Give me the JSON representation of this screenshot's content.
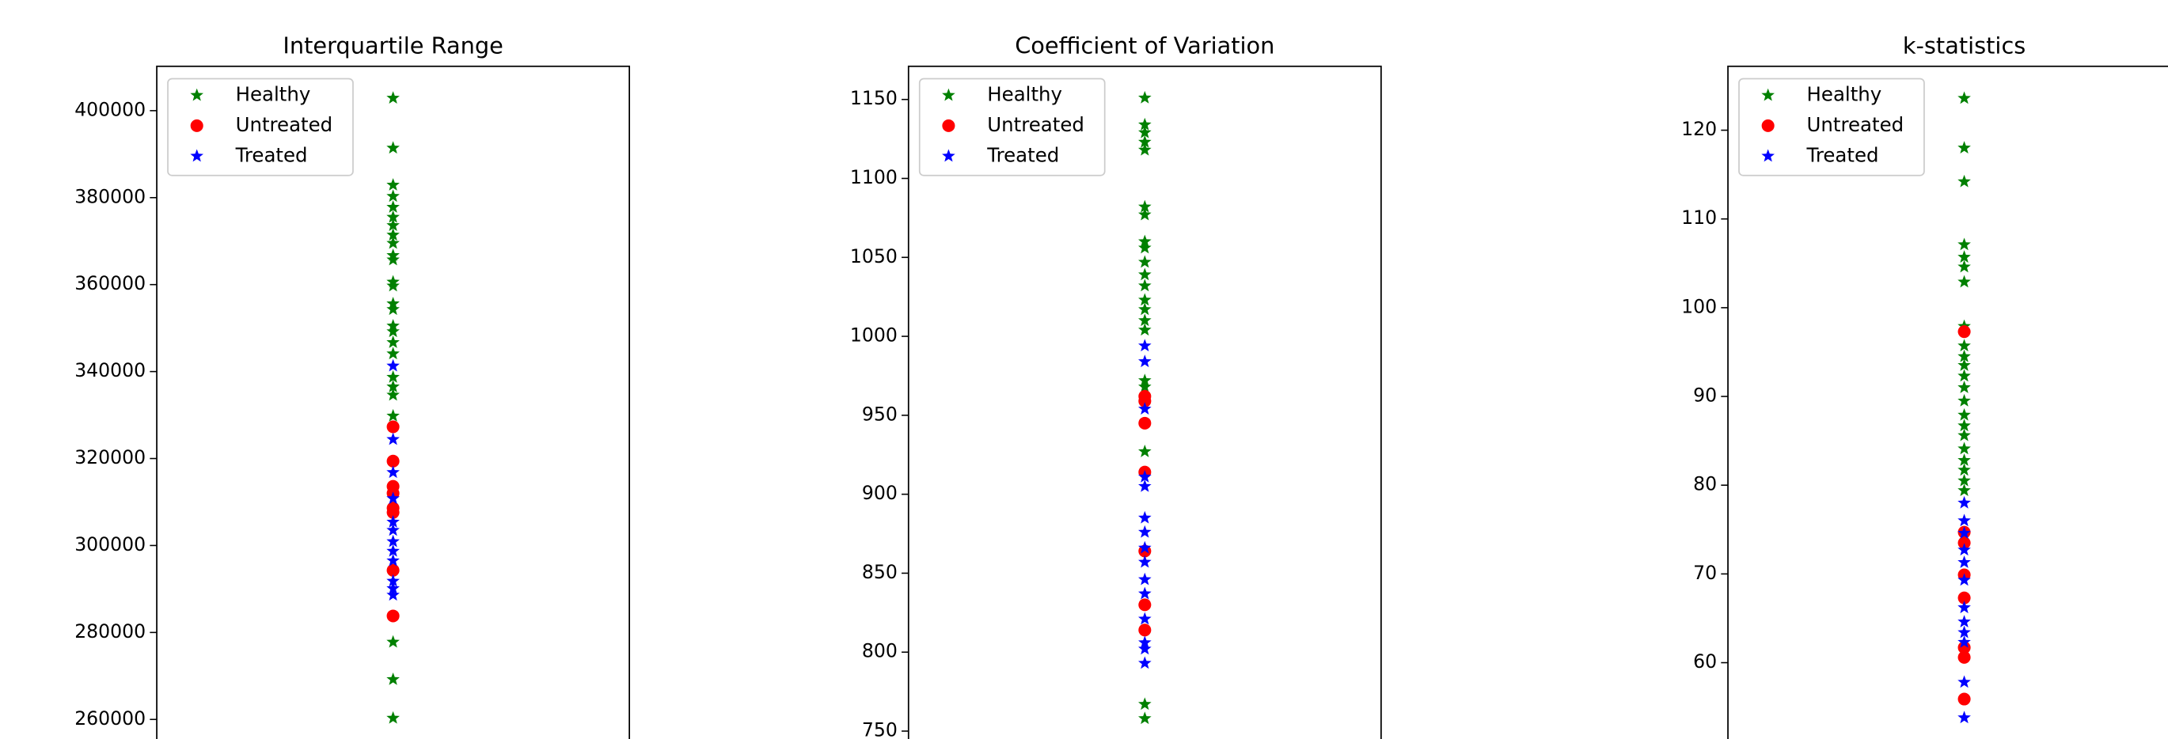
{
  "chart_data": [
    {
      "type": "strip",
      "title": "Interquartile Range",
      "ylim": [
        255500,
        410200
      ],
      "yticks": [
        260000,
        280000,
        300000,
        320000,
        340000,
        360000,
        380000,
        400000
      ],
      "legend": "upper left",
      "series": [
        {
          "name": "Healthy",
          "color": "#008000",
          "marker": "star",
          "values": [
            402900,
            391400,
            382900,
            380300,
            377800,
            375500,
            373600,
            371400,
            369500,
            366700,
            365700,
            360600,
            359700,
            355600,
            354300,
            350500,
            349200,
            346700,
            344100,
            338700,
            336500,
            334600,
            329800,
            277800,
            269200,
            260300
          ]
        },
        {
          "name": "Untreated",
          "color": "#ff0000",
          "marker": "circle",
          "values": [
            327300,
            319400,
            313600,
            312000,
            308600,
            307600,
            294300,
            283800
          ]
        },
        {
          "name": "Treated",
          "color": "#0000ff",
          "marker": "star",
          "values": [
            341300,
            324400,
            316800,
            310800,
            305400,
            303500,
            300900,
            298700,
            296500,
            291800,
            290100,
            288600
          ]
        }
      ]
    },
    {
      "type": "strip",
      "title": "Coefficient of Variation",
      "ylim": [
        745,
        1171
      ],
      "yticks": [
        750,
        800,
        850,
        900,
        950,
        1000,
        1050,
        1100,
        1150
      ],
      "legend": "upper left",
      "series": [
        {
          "name": "Healthy",
          "color": "#008000",
          "marker": "star",
          "values": [
            1151,
            1134,
            1129,
            1123,
            1118,
            1082,
            1077,
            1060,
            1056,
            1047,
            1039,
            1032,
            1023,
            1017,
            1010,
            1004,
            972,
            968,
            927,
            767,
            758
          ]
        },
        {
          "name": "Untreated",
          "color": "#ff0000",
          "marker": "circle",
          "values": [
            962,
            959,
            945,
            914,
            864,
            830,
            814
          ]
        },
        {
          "name": "Treated",
          "color": "#0000ff",
          "marker": "star",
          "values": [
            994,
            984,
            954,
            911,
            905,
            885,
            876,
            866,
            857,
            846,
            837,
            821,
            806,
            802,
            793
          ]
        }
      ]
    },
    {
      "type": "strip",
      "title": "k-statistics",
      "ylim": [
        51.4,
        127.2
      ],
      "yticks": [
        60,
        70,
        80,
        90,
        100,
        110,
        120
      ],
      "legend": "upper left",
      "series": [
        {
          "name": "Healthy",
          "color": "#008000",
          "marker": "star",
          "values": [
            123.6,
            118,
            114.2,
            107.1,
            105.7,
            104.6,
            102.9,
            97.9,
            95.7,
            94.5,
            93.5,
            92.3,
            91,
            89.5,
            87.9,
            86.7,
            85.6,
            84.1,
            82.8,
            81.7,
            80.5,
            79.4
          ]
        },
        {
          "name": "Untreated",
          "color": "#ff0000",
          "marker": "circle",
          "values": [
            97.3,
            74.7,
            73.5,
            69.9,
            67.3,
            61.7,
            60.6,
            55.9
          ]
        },
        {
          "name": "Treated",
          "color": "#0000ff",
          "marker": "star",
          "values": [
            78,
            76,
            74.6,
            72.7,
            71.3,
            69.3,
            66.2,
            64.6,
            63.4,
            62.3,
            57.8,
            53.8
          ]
        }
      ]
    }
  ]
}
